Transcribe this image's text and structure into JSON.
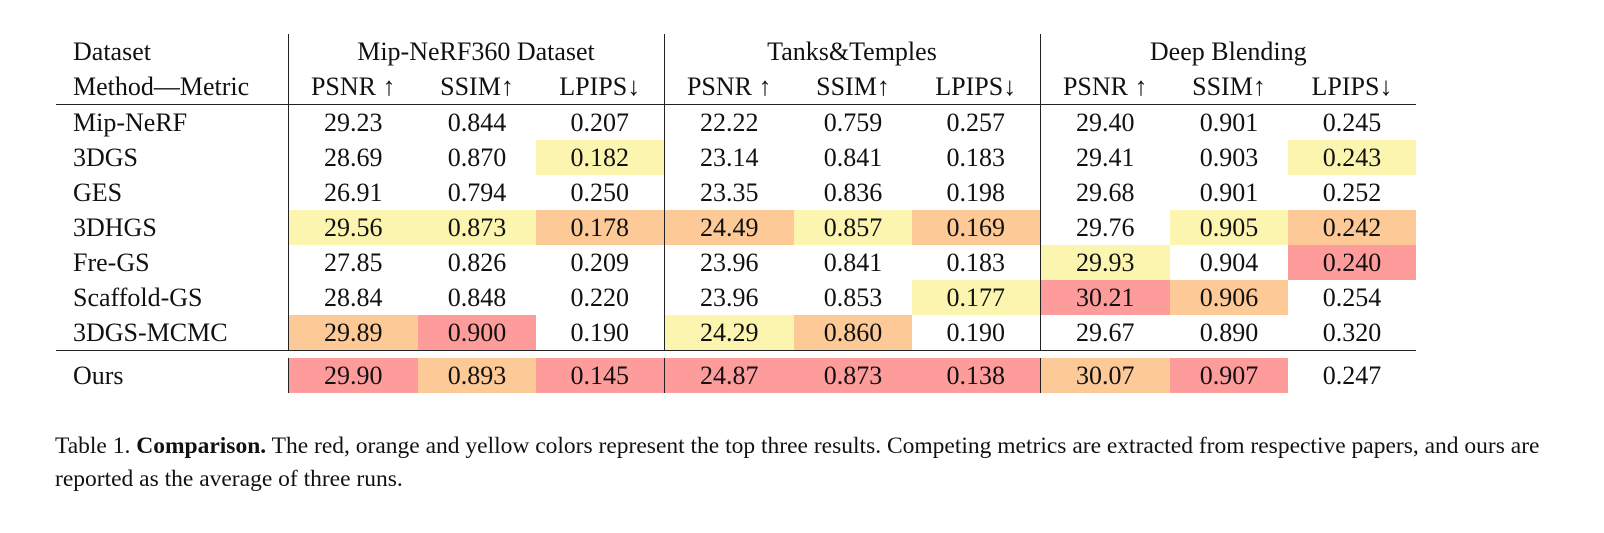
{
  "colors": {
    "first": "#fe9c9c",
    "second": "#fdc996",
    "third": "#fbf5b0"
  },
  "table": {
    "header_dataset": "Dataset",
    "header_method": "Method—Metric",
    "groups": [
      "Mip-NeRF360 Dataset",
      "Tanks&Temples",
      "Deep Blending"
    ],
    "metrics": [
      "PSNR ↑",
      "SSIM↑",
      "LPIPS↓",
      "PSNR ↑",
      "SSIM↑",
      "LPIPS↓",
      "PSNR ↑",
      "SSIM↑",
      "LPIPS↓"
    ],
    "rows": [
      {
        "method": "Mip-NeRF",
        "values": [
          "29.23",
          "0.844",
          "0.207",
          "22.22",
          "0.759",
          "0.257",
          "29.40",
          "0.901",
          "0.245"
        ],
        "ranks": [
          0,
          0,
          0,
          0,
          0,
          0,
          0,
          0,
          0
        ]
      },
      {
        "method": "3DGS",
        "values": [
          "28.69",
          "0.870",
          "0.182",
          "23.14",
          "0.841",
          "0.183",
          "29.41",
          "0.903",
          "0.243"
        ],
        "ranks": [
          0,
          0,
          3,
          0,
          0,
          0,
          0,
          0,
          3
        ]
      },
      {
        "method": "GES",
        "values": [
          "26.91",
          "0.794",
          "0.250",
          "23.35",
          "0.836",
          "0.198",
          "29.68",
          "0.901",
          "0.252"
        ],
        "ranks": [
          0,
          0,
          0,
          0,
          0,
          0,
          0,
          0,
          0
        ]
      },
      {
        "method": "3DHGS",
        "values": [
          "29.56",
          "0.873",
          "0.178",
          "24.49",
          "0.857",
          "0.169",
          "29.76",
          "0.905",
          "0.242"
        ],
        "ranks": [
          3,
          3,
          2,
          2,
          3,
          2,
          0,
          3,
          2
        ]
      },
      {
        "method": "Fre-GS",
        "values": [
          "27.85",
          "0.826",
          "0.209",
          "23.96",
          "0.841",
          "0.183",
          "29.93",
          "0.904",
          "0.240"
        ],
        "ranks": [
          0,
          0,
          0,
          0,
          0,
          0,
          3,
          0,
          1
        ]
      },
      {
        "method": "Scaffold-GS",
        "values": [
          "28.84",
          "0.848",
          "0.220",
          "23.96",
          "0.853",
          "0.177",
          "30.21",
          "0.906",
          "0.254"
        ],
        "ranks": [
          0,
          0,
          0,
          0,
          0,
          3,
          1,
          2,
          0
        ]
      },
      {
        "method": "3DGS-MCMC",
        "values": [
          "29.89",
          "0.900",
          "0.190",
          "24.29",
          "0.860",
          "0.190",
          "29.67",
          "0.890",
          "0.320"
        ],
        "ranks": [
          2,
          1,
          0,
          3,
          2,
          0,
          0,
          0,
          0
        ]
      }
    ],
    "ours": {
      "method": "Ours",
      "values": [
        "29.90",
        "0.893",
        "0.145",
        "24.87",
        "0.873",
        "0.138",
        "30.07",
        "0.907",
        "0.247"
      ],
      "ranks": [
        1,
        2,
        1,
        1,
        1,
        1,
        2,
        1,
        0
      ]
    }
  },
  "caption": {
    "label": "Table 1.",
    "bold": "Comparison.",
    "text": "The red, orange and yellow colors represent the top three results. Competing metrics are extracted from respective papers, and ours are reported as the average of three runs."
  }
}
